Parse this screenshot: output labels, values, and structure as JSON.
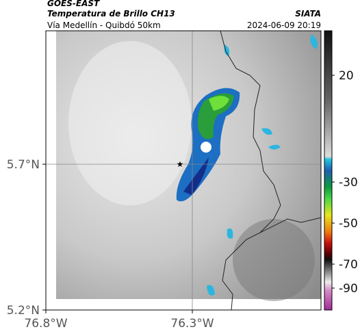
{
  "header": {
    "source": "GOES-EAST",
    "product": "Temperatura de Brillo CH13",
    "route": "Vía Medellín - Quibdó 50km",
    "org": "SIATA",
    "datetime": "2024-06-09 20:19"
  },
  "axes": {
    "y_labels": [
      "5.7°N",
      "5.2°N"
    ],
    "x_labels": [
      "76.8°W",
      "76.3°W"
    ]
  },
  "colorbar": {
    "labels": [
      "20",
      "-30",
      "-50",
      "-70",
      "-90"
    ]
  }
}
